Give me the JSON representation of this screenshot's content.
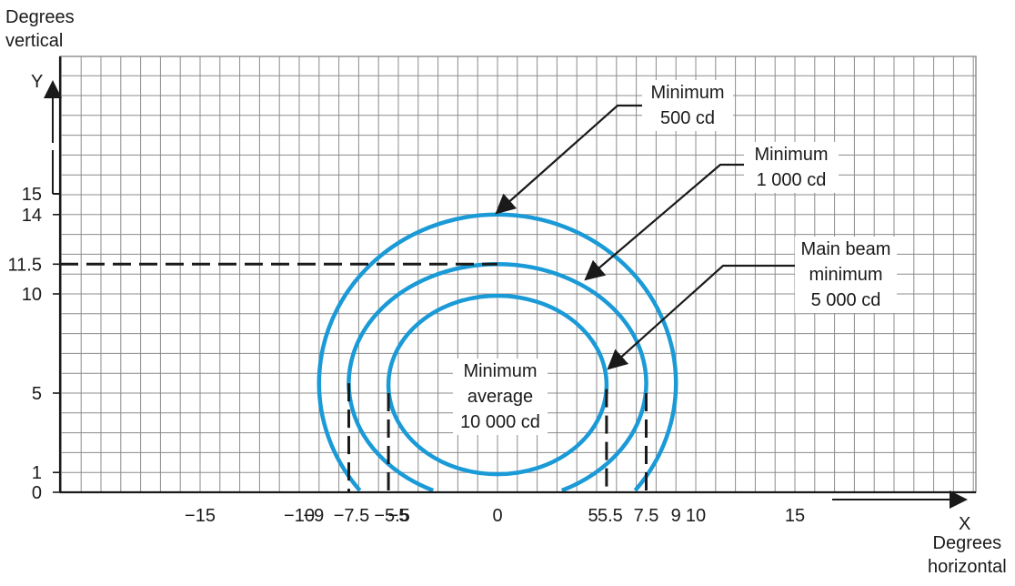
{
  "y_axis": {
    "title_line1": "Degrees",
    "title_line2": "vertical",
    "letter": "Y",
    "ticks": [
      {
        "v": 15,
        "label": "15"
      },
      {
        "v": 14,
        "label": "14"
      },
      {
        "v": 11.5,
        "label": "11.5"
      },
      {
        "v": 10,
        "label": "10"
      },
      {
        "v": 5,
        "label": "5"
      },
      {
        "v": 1,
        "label": "1"
      },
      {
        "v": 0,
        "label": "0"
      }
    ]
  },
  "x_axis": {
    "title_line1": "Degrees",
    "title_line2": "horizontal",
    "letter": "X",
    "ticks": [
      {
        "v": -15,
        "label": "−15"
      },
      {
        "v": -10,
        "label": "−10"
      },
      {
        "v": -9,
        "label": "−9"
      },
      {
        "v": -7.5,
        "label": "−7.5"
      },
      {
        "v": -5.5,
        "label": "−5.5"
      },
      {
        "v": -5,
        "label": "−5"
      },
      {
        "v": 0,
        "label": "0"
      },
      {
        "v": 5,
        "label": "5"
      },
      {
        "v": 5.5,
        "label": "5.5"
      },
      {
        "v": 7.5,
        "label": "7.5"
      },
      {
        "v": 9,
        "label": "9"
      },
      {
        "v": 10,
        "label": "10"
      },
      {
        "v": 15,
        "label": "15"
      }
    ]
  },
  "contours": [
    {
      "outer_top_deg": 14,
      "half_width_deg": 9,
      "label_lines": [
        "Minimum",
        "500 cd"
      ]
    },
    {
      "outer_top_deg": 11.5,
      "half_width_deg": 7.5,
      "label_lines": [
        "Minimum",
        "1 000 cd"
      ]
    },
    {
      "outer_top_deg": 10,
      "half_width_deg": 5.5,
      "label_lines": [
        "Main beam",
        "minimum",
        "5 000 cd"
      ]
    }
  ],
  "center_label": [
    "Minimum",
    "average",
    "10 000 cd"
  ],
  "colors": {
    "contour": "#1a9ad6",
    "grid": "#8c8c8c",
    "ink": "#1a1a1a"
  }
}
